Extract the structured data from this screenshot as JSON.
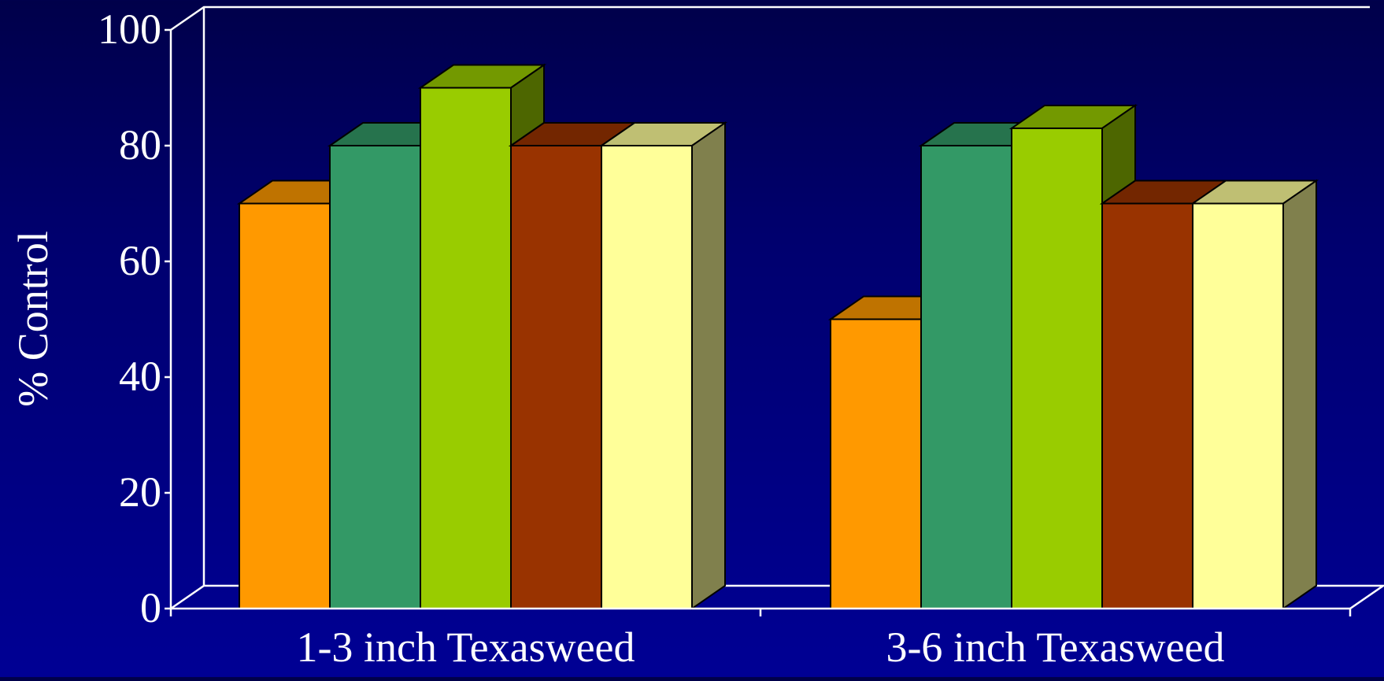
{
  "chart_data": {
    "type": "bar",
    "title": "",
    "xlabel": "",
    "ylabel": "% Control",
    "ylim": [
      0,
      100
    ],
    "yticks": [
      0,
      20,
      40,
      60,
      80,
      100
    ],
    "categories": [
      "1-3 inch Texasweed",
      "3-6 inch Texasweed"
    ],
    "series": [
      {
        "values": [
          70,
          50
        ],
        "color": "#ff9900"
      },
      {
        "values": [
          80,
          80
        ],
        "color": "#339966"
      },
      {
        "values": [
          90,
          83
        ],
        "color": "#99cc00"
      },
      {
        "values": [
          80,
          70
        ],
        "color": "#993300"
      },
      {
        "values": [
          80,
          70
        ],
        "color": "#ffff99"
      }
    ],
    "style": "3d-clustered-bar",
    "background_color": "#000094",
    "axis_color": "#ffffff",
    "grid": false,
    "legend": "none"
  }
}
